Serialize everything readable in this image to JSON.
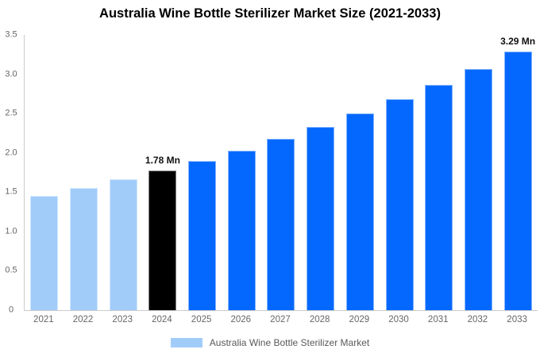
{
  "title": "Australia Wine Bottle Sterilizer Market Size (2021-2033)",
  "legend": {
    "label": "Australia Wine Bottle Sterilizer Market"
  },
  "colors": {
    "historical": "#a1ccfa",
    "base_year": "#000000",
    "forecast": "#0568fe",
    "axis_line": "#cccccc",
    "tick_text": "#666666",
    "annotation_text": "#111111",
    "legend_text": "#595959",
    "title_text": "#000000",
    "background": "#ffffff"
  },
  "chart_data": {
    "type": "bar",
    "title": "Australia Wine Bottle Sterilizer Market Size (2021-2033)",
    "unit": "Mn",
    "xlabel": "",
    "ylabel": "",
    "ylim": [
      0,
      3.5
    ],
    "ytick_labels": [
      "0",
      "0.5",
      "1.0",
      "1.5",
      "2.0",
      "2.5",
      "3.0",
      "3.5"
    ],
    "grid": false,
    "legend_position": "bottom",
    "categories": [
      "2021",
      "2022",
      "2023",
      "2024",
      "2025",
      "2026",
      "2027",
      "2028",
      "2029",
      "2030",
      "2031",
      "2032",
      "2033"
    ],
    "values": [
      1.45,
      1.55,
      1.66,
      1.78,
      1.9,
      2.03,
      2.18,
      2.33,
      2.5,
      2.68,
      2.87,
      3.07,
      3.29
    ],
    "bar_color_keys": [
      "historical",
      "historical",
      "historical",
      "base_year",
      "forecast",
      "forecast",
      "forecast",
      "forecast",
      "forecast",
      "forecast",
      "forecast",
      "forecast",
      "forecast"
    ],
    "annotations": [
      {
        "index": 3,
        "text": "1.78 Mn"
      },
      {
        "index": 12,
        "text": "3.29 Mn"
      }
    ]
  }
}
